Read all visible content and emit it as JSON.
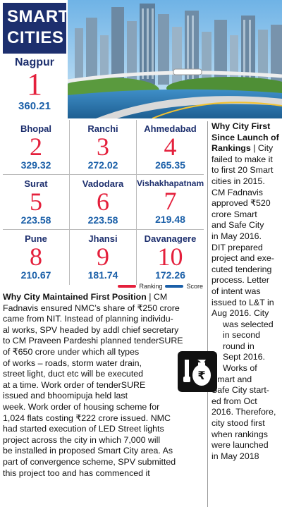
{
  "header": {
    "title_line1": "SMART",
    "title_line2": "CITIES",
    "featured": {
      "city": "Nagpur",
      "rank": "1",
      "score": "360.21"
    }
  },
  "rankings": [
    {
      "city": "Bhopal",
      "rank": "2",
      "score": "329.32"
    },
    {
      "city": "Ranchi",
      "rank": "3",
      "score": "272.02"
    },
    {
      "city": "Ahmedabad",
      "rank": "4",
      "score": "265.35"
    },
    {
      "city": "Surat",
      "rank": "5",
      "score": "223.58"
    },
    {
      "city": "Vadodara",
      "rank": "6",
      "score": "223.58"
    },
    {
      "city": "Vishakhapatnam",
      "rank": "7",
      "score": "219.48"
    },
    {
      "city": "Pune",
      "rank": "8",
      "score": "210.67"
    },
    {
      "city": "Jhansi",
      "rank": "9",
      "score": "181.74"
    },
    {
      "city": "Davanagere",
      "rank": "10",
      "score": "172.26"
    }
  ],
  "legend": {
    "ranking_label": "Ranking",
    "score_label": "Score",
    "ranking_color": "#e4203c",
    "score_color": "#1a5fa8"
  },
  "sidebar": {
    "heading_lines": [
      "Why City First",
      "Since Launch of",
      "Rankings"
    ],
    "lines": [
      "| City",
      "failed to make it",
      "to first 20 Smart",
      "cities in 2015.",
      "CM Fadnavis",
      "approved ₹520",
      "crore Smart",
      "and Safe City",
      "in May 2016.",
      "DIT prepared",
      "project and exe-",
      "cuted tendering",
      "process. Letter",
      "of intent was",
      "issued to L&T in",
      "Aug 2016. City",
      "was selected",
      "in second",
      "round in",
      "Sept 2016.",
      "Works of",
      "Smart and",
      "Safe City start-",
      "ed from Oct",
      "2016. Therefore,",
      "city stood first",
      "when rankings",
      "were launched",
      "in May 2018"
    ]
  },
  "article": {
    "heading": "Why City Maintained First Position",
    "lines": [
      "| CM",
      "Fadnavis ensured NMC’s share of ₹250 crore",
      "came from NIT. Instead of planning individu-",
      "al works, SPV headed by addl chief secretary",
      "to CM Praveen Pardeshi planned tenderSURE",
      "of ₹650 crore under which all types",
      "of works – roads, storm water drain,",
      "street light, duct etc will be executed",
      "at a time. Work order of tenderSURE",
      "issued and bhoomipuja held last",
      "week. Work order of housing scheme for",
      "1,024 flats costing ₹222 crore issued. NMC",
      "had started execution of LED Street lights",
      "project across the city in which 7,000 will",
      "be installed in proposed Smart City area. As",
      "part of convergence scheme, SPV submitted",
      "this project too and has commenced it"
    ]
  },
  "icons": {
    "city": "city-skyline-icon",
    "money": "money-bag-icon"
  }
}
